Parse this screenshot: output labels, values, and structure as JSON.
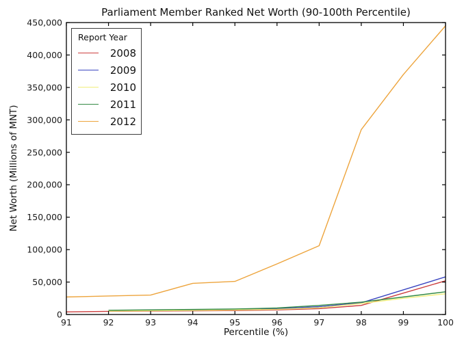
{
  "chart_data": {
    "type": "line",
    "title": "Parliament Member Ranked Net Worth (90-100th Percentile)",
    "xlabel": "Percentile (%)",
    "ylabel": "Net Worth (Millions of MNT)",
    "xlim": [
      91,
      100
    ],
    "ylim": [
      0,
      450000
    ],
    "grid": false,
    "x": [
      91,
      92,
      93,
      94,
      95,
      96,
      97,
      98,
      99,
      100
    ],
    "xticks": [
      91,
      92,
      93,
      94,
      95,
      96,
      97,
      98,
      99,
      100
    ],
    "xtick_labels": [
      "91",
      "92",
      "93",
      "94",
      "95",
      "96",
      "97",
      "98",
      "99",
      "100"
    ],
    "yticks": [
      0,
      50000,
      100000,
      150000,
      200000,
      250000,
      300000,
      350000,
      400000,
      450000
    ],
    "ytick_labels": [
      "0",
      "50,000",
      "100,000",
      "150,000",
      "200,000",
      "250,000",
      "300,000",
      "350,000",
      "400,000",
      "450,000"
    ],
    "legend": {
      "title": "Report Year",
      "position": "upper left"
    },
    "series": [
      {
        "name": "2008",
        "color": "#cc3d3d",
        "values": [
          4000,
          4800,
          5200,
          5600,
          6200,
          7000,
          9000,
          14000,
          33000,
          52000
        ]
      },
      {
        "name": "2009",
        "color": "#3a45c0",
        "values": [
          null,
          6000,
          6500,
          7000,
          7800,
          9000,
          12000,
          18000,
          38000,
          58000
        ]
      },
      {
        "name": "2010",
        "color": "#f1ee7b",
        "values": [
          null,
          5200,
          5800,
          6300,
          7000,
          8000,
          10500,
          17000,
          25000,
          32000
        ]
      },
      {
        "name": "2011",
        "color": "#338a44",
        "values": [
          null,
          6500,
          7200,
          7800,
          8500,
          10000,
          14000,
          19000,
          27000,
          35000
        ]
      },
      {
        "name": "2012",
        "color": "#eda43c",
        "values": [
          27000,
          28500,
          30000,
          48000,
          51000,
          78000,
          106000,
          285000,
          370000,
          445000
        ]
      }
    ],
    "axis_color": "#000000",
    "tick_label_color": "#1a1a1a"
  }
}
